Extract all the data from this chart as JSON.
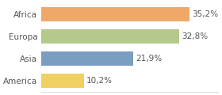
{
  "categories": [
    "America",
    "Asia",
    "Europa",
    "Africa"
  ],
  "values": [
    10.2,
    21.9,
    32.8,
    35.2
  ],
  "labels": [
    "10,2%",
    "21,9%",
    "32,8%",
    "35,2%"
  ],
  "colors": [
    "#f0d060",
    "#7b9dc0",
    "#b5c98a",
    "#f0a868"
  ],
  "background_color": "#ffffff",
  "xlim": [
    0,
    42
  ],
  "bar_height": 0.62,
  "label_fontsize": 7.5,
  "tick_fontsize": 7.5
}
